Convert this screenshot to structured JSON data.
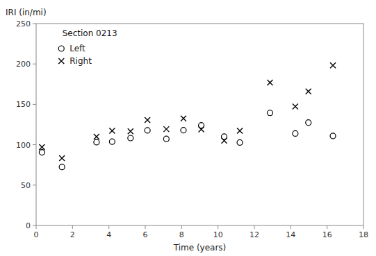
{
  "chart_data": {
    "type": "scatter",
    "title": "Section 0213",
    "xlabel": "Time (years)",
    "ylabel": "IRI (in/mi)",
    "xlim": [
      0,
      18
    ],
    "ylim": [
      0,
      250
    ],
    "xticks": [
      0,
      2,
      4,
      6,
      8,
      10,
      12,
      14,
      16,
      18
    ],
    "yticks": [
      0,
      50,
      100,
      150,
      200,
      250
    ],
    "grid": false,
    "legend": "upper left",
    "series": [
      {
        "name": "Left",
        "color": "black",
        "marker": "circle",
        "x": [
          0.32,
          1.42,
          3.32,
          4.18,
          5.19,
          6.12,
          7.16,
          8.1,
          9.08,
          10.34,
          11.2,
          12.86,
          14.25,
          14.97,
          16.32
        ],
        "values": [
          90.54,
          72.48,
          103.17,
          103.79,
          108.25,
          117.77,
          107.27,
          117.94,
          123.96,
          110.06,
          102.72,
          139.4,
          113.92,
          127.43,
          110.92
        ]
      },
      {
        "name": "Right",
        "color": "black",
        "marker": "x",
        "x": [
          0.32,
          1.42,
          3.32,
          4.18,
          5.19,
          6.12,
          7.16,
          8.1,
          9.08,
          10.34,
          11.2,
          12.86,
          14.25,
          14.97,
          16.32
        ],
        "values": [
          97.06,
          83.29,
          110.05,
          117.26,
          116.62,
          130.57,
          119.31,
          132.59,
          119.08,
          105.0,
          117.34,
          177.02,
          147.33,
          165.99,
          198.33
        ]
      }
    ]
  }
}
